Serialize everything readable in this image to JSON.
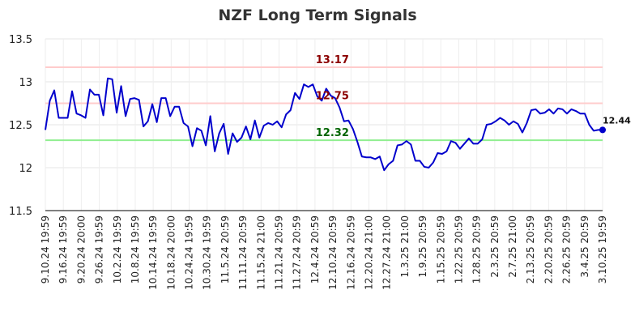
{
  "chart_data": {
    "type": "line",
    "title": "NZF Long Term Signals",
    "xlabel": "",
    "ylabel": "",
    "ylim": [
      11.5,
      13.5
    ],
    "y_ticks": [
      "11.5",
      "12",
      "12.5",
      "13",
      "13.5"
    ],
    "x_tick_labels": [
      "9.10.24 19:59",
      "9.16.24 19:59",
      "9.20.24 20:00",
      "9.26.24 19:59",
      "10.2.24 19:59",
      "10.8.24 19:59",
      "10.14.24 19:59",
      "10.18.24 20:00",
      "10.24.24 19:59",
      "10.30.24 19:59",
      "11.5.24 20:59",
      "11.11.24 20:59",
      "11.15.24 21:00",
      "11.21.24 20:59",
      "11.27.24 20:59",
      "12.4.24 20:59",
      "12.10.24 20:59",
      "12.16.24 20:59",
      "12.20.24 21:00",
      "12.27.24 21:00",
      "1.3.25 21:00",
      "1.9.25 20:59",
      "1.15.25 20:59",
      "1.22.25 20:59",
      "1.28.25 20:59",
      "2.3.25 20:59",
      "2.7.25 21:00",
      "2.13.25 20:59",
      "2.20.25 20:59",
      "2.26.25 20:59",
      "3.4.25 20:59",
      "3.10.25 19:59"
    ],
    "grid": true,
    "horizontal_lines": [
      {
        "value": 13.17,
        "label": "13.17",
        "line_color": "#ffcccc",
        "label_color": "#8b0000"
      },
      {
        "value": 12.75,
        "label": "12.75",
        "line_color": "#ffcccc",
        "label_color": "#8b0000"
      },
      {
        "value": 12.32,
        "label": "12.32",
        "line_color": "#90ee90",
        "label_color": "#006400"
      }
    ],
    "series_color": "#0000cc",
    "last_value_label": "12.44",
    "series": [
      {
        "values": [
          12.44,
          12.78,
          12.9,
          12.58,
          12.58,
          12.58,
          12.89,
          12.63,
          12.61,
          12.58,
          12.91,
          12.85,
          12.85,
          12.61,
          13.04,
          13.03,
          12.64,
          12.95,
          12.6,
          12.8,
          12.81,
          12.79,
          12.48,
          12.54,
          12.74,
          12.53,
          12.81,
          12.81,
          12.6,
          12.71,
          12.71,
          12.52,
          12.48,
          12.25,
          12.46,
          12.43,
          12.26,
          12.6,
          12.19,
          12.4,
          12.51,
          12.16,
          12.4,
          12.3,
          12.35,
          12.48,
          12.33,
          12.55,
          12.35,
          12.49,
          12.52,
          12.5,
          12.54,
          12.47,
          12.62,
          12.67,
          12.87,
          12.8,
          12.97,
          12.94,
          12.97,
          12.83,
          12.78,
          12.92,
          12.84,
          12.81,
          12.7,
          12.54,
          12.55,
          12.45,
          12.3,
          12.13,
          12.12,
          12.12,
          12.1,
          12.13,
          11.97,
          12.04,
          12.08,
          12.26,
          12.27,
          12.31,
          12.27,
          12.08,
          12.08,
          12.01,
          12.0,
          12.06,
          12.17,
          12.16,
          12.19,
          12.31,
          12.29,
          12.22,
          12.28,
          12.34,
          12.28,
          12.28,
          12.33,
          12.5,
          12.51,
          12.54,
          12.58,
          12.55,
          12.5,
          12.54,
          12.51,
          12.41,
          12.52,
          12.67,
          12.68,
          12.63,
          12.64,
          12.68,
          12.63,
          12.69,
          12.68,
          12.63,
          12.68,
          12.66,
          12.63,
          12.63,
          12.5,
          12.43,
          12.44,
          12.44
        ]
      }
    ]
  }
}
